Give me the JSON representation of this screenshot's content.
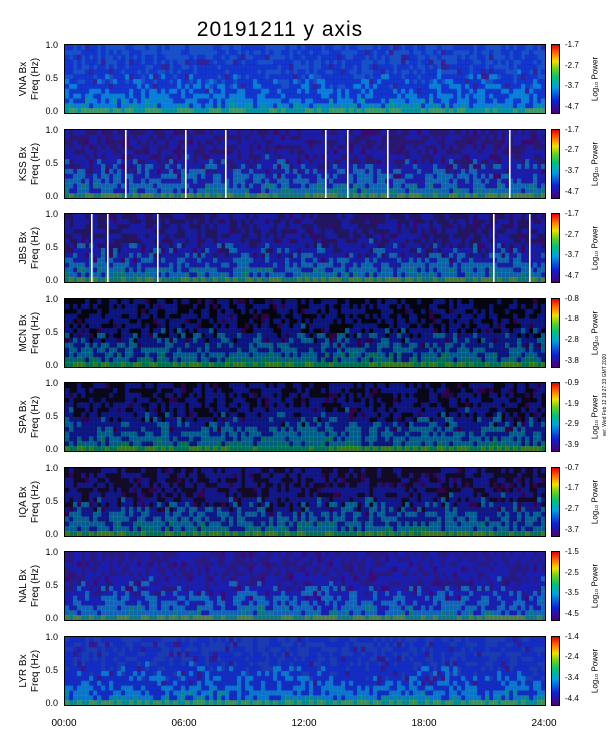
{
  "chart_data": {
    "type": "heatmap",
    "title": "20191211  y axis",
    "xlabel": "",
    "x_ticks": [
      "00:00",
      "06:00",
      "12:00",
      "18:00",
      "24:00"
    ],
    "xlim_hours": [
      0,
      24
    ],
    "ylim": [
      0,
      1.0
    ],
    "y_ticks": [
      "0.0",
      "0.5",
      "1.0"
    ],
    "colorbar_label": "Log₁₀ Power",
    "colormap": [
      "#4b0070",
      "#1020d0",
      "#00a0e0",
      "#00c080",
      "#60d020",
      "#f0e000",
      "#ff7000",
      "#e00000"
    ],
    "side_note": "ver. Wed Feb 12 19:27:33 GMT 2020",
    "panels": [
      {
        "station_label": "VNA Bx",
        "freq_label": "Freq (Hz)",
        "cbar_ticks": [
          "-1.7",
          "-2.7",
          "-3.7",
          "-4.7"
        ],
        "background": "#1850c8",
        "gaps": []
      },
      {
        "station_label": "KSS Bx",
        "freq_label": "Freq (Hz)",
        "cbar_ticks": [
          "-1.7",
          "-2.7",
          "-3.7",
          "-4.7"
        ],
        "background": "#2a1870",
        "gaps": [
          3.0,
          6.0,
          8.0,
          13.0,
          14.1,
          16.1,
          22.2
        ]
      },
      {
        "station_label": "JBS Bx",
        "freq_label": "Freq (Hz)",
        "cbar_ticks": [
          "-1.7",
          "-2.7",
          "-3.7",
          "-4.7"
        ],
        "background": "#221660",
        "gaps": [
          1.3,
          2.1,
          4.6,
          21.4,
          23.2
        ]
      },
      {
        "station_label": "MCN Bx",
        "freq_label": "Freq (Hz)",
        "cbar_ticks": [
          "-0.8",
          "-1.8",
          "-2.8",
          "-3.8"
        ],
        "background": "#050510",
        "gaps": []
      },
      {
        "station_label": "SPA Bx",
        "freq_label": "Freq (Hz)",
        "cbar_ticks": [
          "-0.9",
          "-1.9",
          "-2.9",
          "-3.9"
        ],
        "background": "#0a0818",
        "gaps": []
      },
      {
        "station_label": "IQA Bx",
        "freq_label": "Freq (Hz)",
        "cbar_ticks": [
          "-0.7",
          "-1.7",
          "-2.7",
          "-3.7"
        ],
        "background": "#120a26",
        "gaps": []
      },
      {
        "station_label": "NAL Bx",
        "freq_label": "Freq (Hz)",
        "cbar_ticks": [
          "-1.5",
          "-2.5",
          "-3.5",
          "-4.5"
        ],
        "background": "#281a80",
        "gaps": []
      },
      {
        "station_label": "LYR Bx",
        "freq_label": "Freq (Hz)",
        "cbar_ticks": [
          "-1.4",
          "-2.4",
          "-3.4",
          "-4.4"
        ],
        "background": "#1a3cb0",
        "gaps": []
      }
    ]
  }
}
